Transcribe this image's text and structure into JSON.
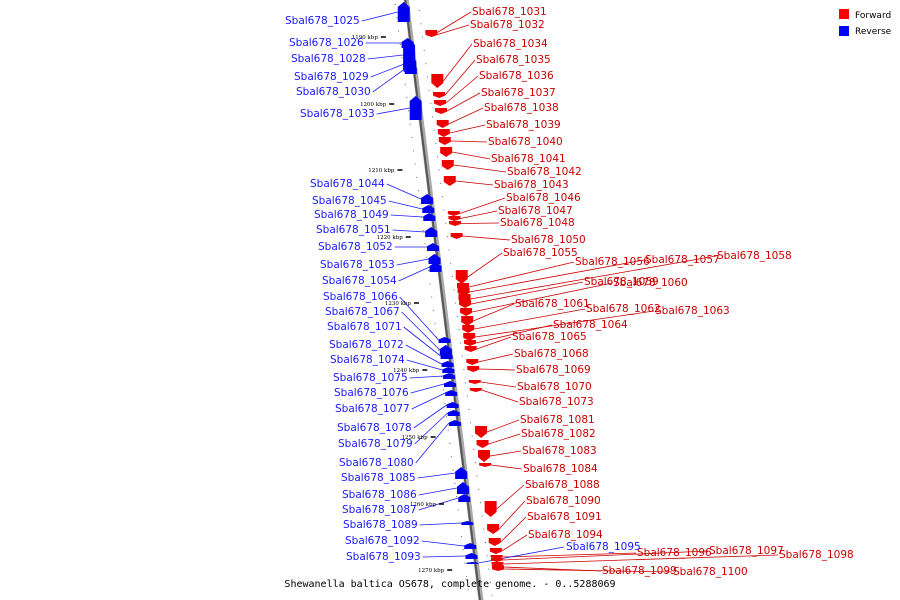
{
  "caption": "Shewanella baltica OS678, complete genome. - 0..5288069",
  "legend": [
    {
      "label": "Forward",
      "color": "#ff0000"
    },
    {
      "label": "Reverse",
      "color": "#0000ff"
    }
  ],
  "scale_ticks": [
    "1190 kbp",
    "1200 kbp",
    "1210 kbp",
    "1220 kbp",
    "1230 kbp",
    "1240 kbp",
    "1250 kbp",
    "1260 kbp",
    "1270 kbp"
  ],
  "forward_genes": [
    "Sbal678_1031",
    "Sbal678_1032",
    "Sbal678_1034",
    "Sbal678_1035",
    "Sbal678_1036",
    "Sbal678_1037",
    "Sbal678_1038",
    "Sbal678_1039",
    "Sbal678_1040",
    "Sbal678_1041",
    "Sbal678_1042",
    "Sbal678_1043",
    "Sbal678_1046",
    "Sbal678_1047",
    "Sbal678_1048",
    "Sbal678_1050",
    "Sbal678_1055",
    "Sbal678_1056",
    "Sbal678_1057",
    "Sbal678_1058",
    "Sbal678_1059",
    "Sbal678_1060",
    "Sbal678_1061",
    "Sbal678_1062",
    "Sbal678_1063",
    "Sbal678_1064",
    "Sbal678_1065",
    "Sbal678_1068",
    "Sbal678_1069",
    "Sbal678_1070",
    "Sbal678_1073",
    "Sbal678_1081",
    "Sbal678_1082",
    "Sbal678_1083",
    "Sbal678_1084",
    "Sbal678_1088",
    "Sbal678_1090",
    "Sbal678_1091",
    "Sbal678_1094",
    "Sbal678_1096",
    "Sbal678_1097",
    "Sbal678_1098",
    "Sbal678_1099",
    "Sbal678_1100"
  ],
  "reverse_genes": [
    "Sbal678_1025",
    "Sbal678_1026",
    "Sbal678_1028",
    "Sbal678_1029",
    "Sbal678_1030",
    "Sbal678_1033",
    "Sbal678_1044",
    "Sbal678_1045",
    "Sbal678_1049",
    "Sbal678_1051",
    "Sbal678_1052",
    "Sbal678_1053",
    "Sbal678_1054",
    "Sbal678_1066",
    "Sbal678_1067",
    "Sbal678_1071",
    "Sbal678_1072",
    "Sbal678_1074",
    "Sbal678_1075",
    "Sbal678_1076",
    "Sbal678_1077",
    "Sbal678_1078",
    "Sbal678_1079",
    "Sbal678_1080",
    "Sbal678_1085",
    "Sbal678_1086",
    "Sbal678_1087",
    "Sbal678_1089",
    "Sbal678_1092",
    "Sbal678_1093",
    "Sbal678_1095"
  ]
}
